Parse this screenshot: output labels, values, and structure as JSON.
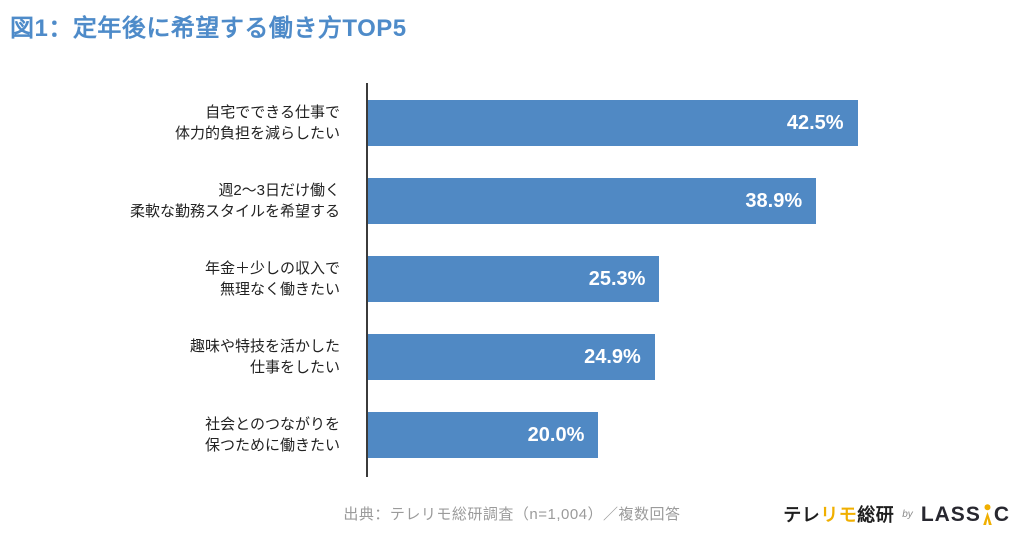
{
  "title": "図1：定年後に希望する働き方TOP5",
  "chart_data": {
    "type": "bar",
    "orientation": "horizontal",
    "title": "図1：定年後に希望する働き方TOP5",
    "categories": [
      {
        "line1": "自宅でできる仕事で",
        "line2": "体力的負担を減らしたい"
      },
      {
        "line1": "週2〜3日だけ働く",
        "line2": "柔軟な勤務スタイルを希望する"
      },
      {
        "line1": "年金＋少しの収入で",
        "line2": "無理なく働きたい"
      },
      {
        "line1": "趣味や特技を活かした",
        "line2": "仕事をしたい"
      },
      {
        "line1": "社会とのつながりを",
        "line2": "保つために働きたい"
      }
    ],
    "values": [
      42.5,
      38.9,
      25.3,
      24.9,
      20.0
    ],
    "value_labels": [
      "42.5%",
      "38.9%",
      "25.3%",
      "24.9%",
      "20.0%"
    ],
    "xlim": [
      0,
      50
    ],
    "grid": false,
    "legend": false,
    "bar_color": "#5089C4",
    "value_label_color": "#FFFFFF",
    "axis_color": "#3B3B3B",
    "title_color": "#4E8BC9"
  },
  "footer": {
    "source": "出典：テレリモ総研調査（n=1,004）／複数回答"
  },
  "logo": {
    "brand_prefix": "テレ",
    "brand_highlight": "リモ",
    "brand_suffix": "総研",
    "by_label": "by",
    "lassic_left": "LASS",
    "lassic_right": "C",
    "person_icon": "person-icon",
    "highlight_color": "#F0AF00"
  }
}
